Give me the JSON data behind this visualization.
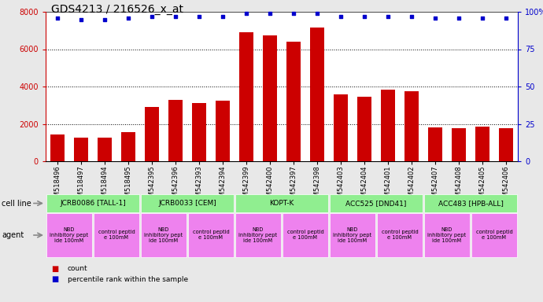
{
  "title": "GDS4213 / 216526_x_at",
  "samples": [
    "GSM518496",
    "GSM518497",
    "GSM518494",
    "GSM518495",
    "GSM542395",
    "GSM542396",
    "GSM542393",
    "GSM542394",
    "GSM542399",
    "GSM542400",
    "GSM542397",
    "GSM542398",
    "GSM542403",
    "GSM542404",
    "GSM542401",
    "GSM542402",
    "GSM542407",
    "GSM542408",
    "GSM542405",
    "GSM542406"
  ],
  "counts": [
    1450,
    1250,
    1250,
    1550,
    2900,
    3300,
    3100,
    3250,
    6900,
    6750,
    6400,
    7150,
    3600,
    3450,
    3850,
    3750,
    1800,
    1750,
    1850,
    1750
  ],
  "percentile": [
    96,
    95,
    95,
    96,
    97,
    97,
    97,
    97,
    99,
    99,
    99,
    99,
    97,
    97,
    97,
    97,
    96,
    96,
    96,
    96
  ],
  "cell_lines": [
    {
      "label": "JCRB0086 [TALL-1]",
      "start": 0,
      "end": 4,
      "color": "#90EE90"
    },
    {
      "label": "JCRB0033 [CEM]",
      "start": 4,
      "end": 8,
      "color": "#90EE90"
    },
    {
      "label": "KOPT-K",
      "start": 8,
      "end": 12,
      "color": "#90EE90"
    },
    {
      "label": "ACC525 [DND41]",
      "start": 12,
      "end": 16,
      "color": "#90EE90"
    },
    {
      "label": "ACC483 [HPB-ALL]",
      "start": 16,
      "end": 20,
      "color": "#90EE90"
    }
  ],
  "agents": [
    {
      "label": "NBD\ninhibitory pept\nide 100mM",
      "start": 0,
      "end": 2,
      "color": "#EE82EE"
    },
    {
      "label": "control peptid\ne 100mM",
      "start": 2,
      "end": 4,
      "color": "#EE82EE"
    },
    {
      "label": "NBD\ninhibitory pept\nide 100mM",
      "start": 4,
      "end": 6,
      "color": "#EE82EE"
    },
    {
      "label": "control peptid\ne 100mM",
      "start": 6,
      "end": 8,
      "color": "#EE82EE"
    },
    {
      "label": "NBD\ninhibitory pept\nide 100mM",
      "start": 8,
      "end": 10,
      "color": "#EE82EE"
    },
    {
      "label": "control peptid\ne 100mM",
      "start": 10,
      "end": 12,
      "color": "#EE82EE"
    },
    {
      "label": "NBD\ninhibitory pept\nide 100mM",
      "start": 12,
      "end": 14,
      "color": "#EE82EE"
    },
    {
      "label": "control peptid\ne 100mM",
      "start": 14,
      "end": 16,
      "color": "#EE82EE"
    },
    {
      "label": "NBD\ninhibitory pept\nide 100mM",
      "start": 16,
      "end": 18,
      "color": "#EE82EE"
    },
    {
      "label": "control peptid\ne 100mM",
      "start": 18,
      "end": 20,
      "color": "#EE82EE"
    }
  ],
  "bar_color": "#CC0000",
  "dot_color": "#0000CC",
  "ylim_left": [
    0,
    8000
  ],
  "ylim_right": [
    0,
    100
  ],
  "yticks_left": [
    0,
    2000,
    4000,
    6000,
    8000
  ],
  "yticks_right": [
    0,
    25,
    50,
    75,
    100
  ],
  "grid_values": [
    2000,
    4000,
    6000
  ],
  "title_fontsize": 10,
  "bar_width": 0.6,
  "bg_color": "#e8e8e8",
  "chart_bg": "white"
}
